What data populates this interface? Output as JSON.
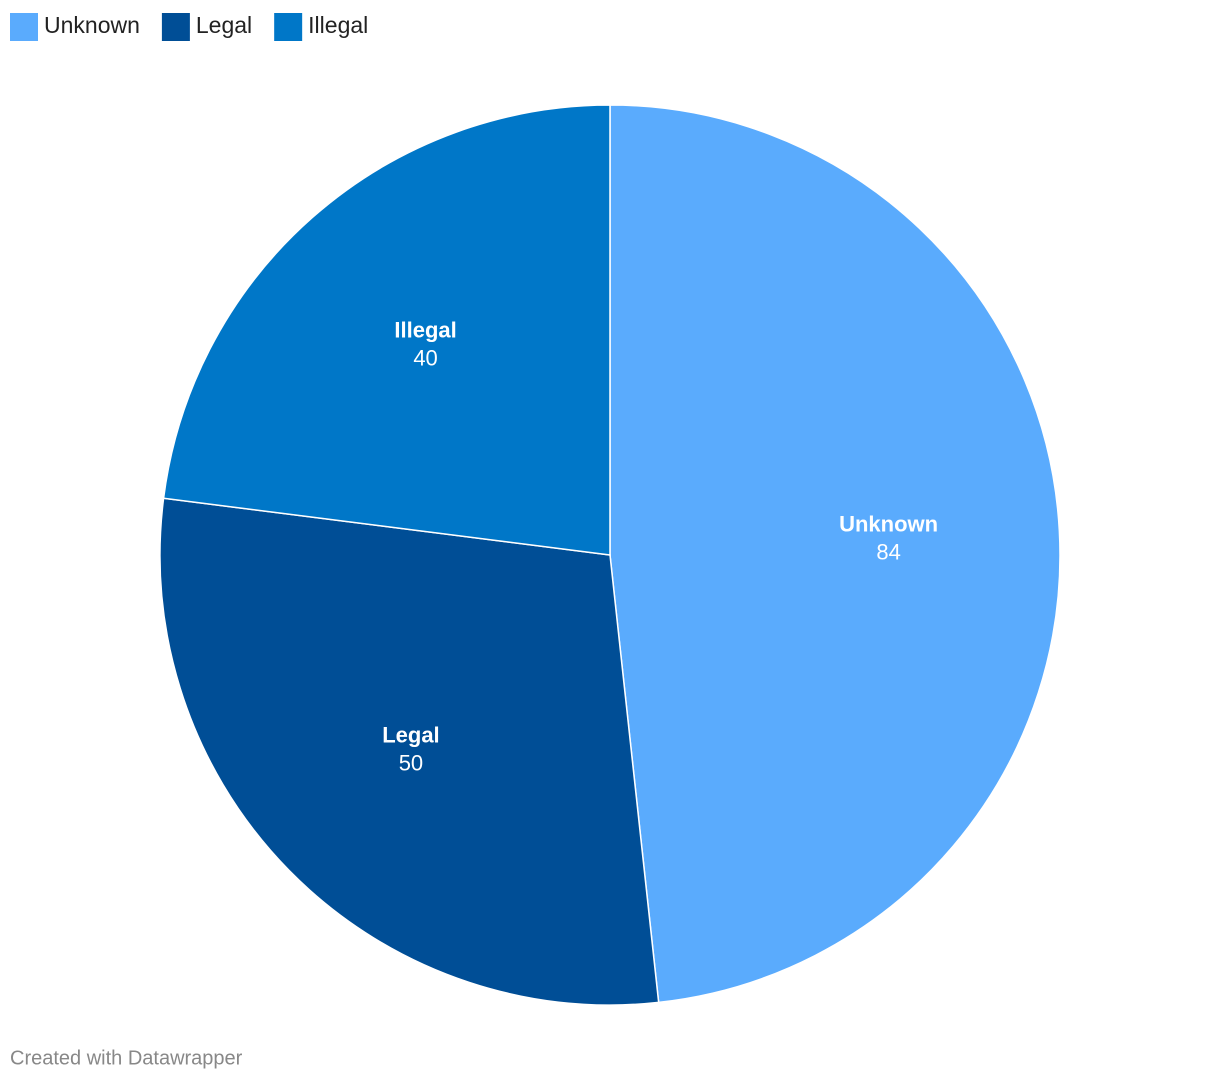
{
  "chart_data": {
    "type": "pie",
    "categories": [
      "Unknown",
      "Legal",
      "Illegal"
    ],
    "values": [
      84,
      50,
      40
    ],
    "colors": [
      "#5aabfd",
      "#004e96",
      "#0077c8"
    ],
    "legend": "top-left",
    "credit": "Created with Datawrapper"
  }
}
